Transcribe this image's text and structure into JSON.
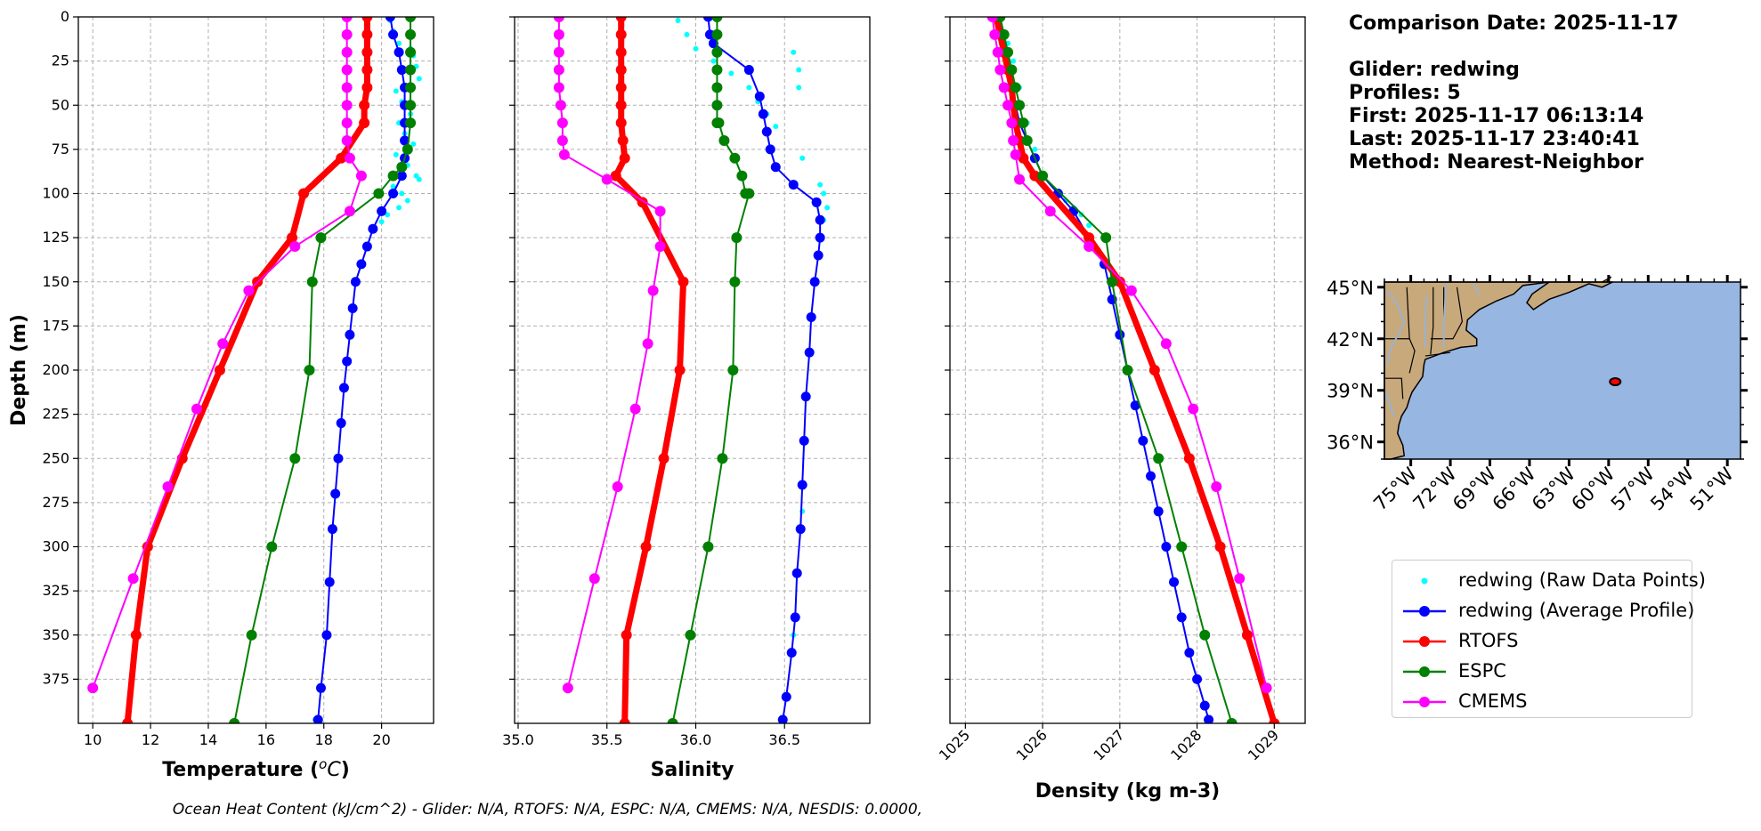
{
  "info": {
    "comparison_date": "Comparison Date: 2025-11-17",
    "glider": "Glider: redwing",
    "profiles": "Profiles: 5",
    "first": "First: 2025-11-17 06:13:14",
    "last": "Last: 2025-11-17 23:40:41",
    "method": "Method: Nearest-Neighbor"
  },
  "footer": "Ocean Heat Content (kJ/cm^2) - Glider: N/A,  RTOFS: N/A,  ESPC: N/A,  CMEMS: N/A,  NESDIS: 0.0000,",
  "legend": [
    {
      "label": "redwing (Raw Data Points)",
      "color": "#00ffff",
      "style": "dots"
    },
    {
      "label": "redwing (Average Profile)",
      "color": "#0000ff",
      "style": "line-marker"
    },
    {
      "label": "RTOFS",
      "color": "#ff0000",
      "style": "line-marker"
    },
    {
      "label": "ESPC",
      "color": "#008000",
      "style": "line-marker"
    },
    {
      "label": "CMEMS",
      "color": "#ff00ff",
      "style": "line-marker"
    }
  ],
  "map": {
    "lat_labels": [
      "45°N",
      "42°N",
      "39°N",
      "36°N"
    ],
    "lat_values": [
      45,
      42,
      39,
      36
    ],
    "lon_labels": [
      "75°W",
      "72°W",
      "69°W",
      "66°W",
      "63°W",
      "60°W",
      "57°W",
      "54°W",
      "51°W"
    ],
    "lon_values": [
      -75,
      -72,
      -69,
      -66,
      -63,
      -60,
      -57,
      -54,
      -51
    ],
    "extent": {
      "lon": [
        -77,
        -50
      ],
      "lat": [
        35,
        45.3
      ]
    },
    "glider_position": {
      "lon": -59.5,
      "lat": 39.5
    },
    "land_color": "#c8a97c",
    "ocean_color": "#97b6e1"
  },
  "chart_data": [
    {
      "type": "line",
      "xlabel": "Temperature ($^oC$)",
      "ylabel": "Depth (m)",
      "xlim": [
        9.5,
        21.8
      ],
      "ylim": [
        400,
        0
      ],
      "xticks": [
        10,
        12,
        14,
        16,
        18,
        20
      ],
      "yticks": [
        0,
        25,
        50,
        75,
        100,
        125,
        150,
        175,
        200,
        225,
        250,
        275,
        300,
        325,
        350,
        375
      ],
      "grid": true,
      "series": [
        {
          "name": "redwing (Raw Data Points)",
          "style": "dots",
          "color": "#00ffff",
          "x": [
            20.3,
            20.4,
            20.6,
            21.0,
            21.1,
            21.2,
            21.3,
            20.5,
            20.7,
            21.0,
            20.6,
            20.8,
            21.1,
            20.5,
            20.9,
            21.2,
            20.4,
            20.7,
            21.3,
            20.9,
            20.6,
            20.2,
            20.0,
            19.7,
            17.7
          ],
          "y": [
            2,
            8,
            15,
            18,
            22,
            28,
            35,
            42,
            48,
            55,
            60,
            66,
            72,
            78,
            84,
            90,
            96,
            100,
            92,
            104,
            108,
            112,
            116,
            120,
            398
          ]
        },
        {
          "name": "redwing (Average Profile)",
          "style": "line-marker",
          "color": "#0000ff",
          "x": [
            20.3,
            20.4,
            20.6,
            20.7,
            20.8,
            20.8,
            20.8,
            20.8,
            20.8,
            20.7,
            20.4,
            20.0,
            19.7,
            19.5,
            19.3,
            19.1,
            19.0,
            18.9,
            18.8,
            18.7,
            18.6,
            18.5,
            18.4,
            18.3,
            18.2,
            18.1,
            17.9,
            17.8
          ],
          "y": [
            0,
            10,
            20,
            30,
            40,
            50,
            60,
            70,
            80,
            90,
            100,
            110,
            120,
            130,
            140,
            150,
            165,
            180,
            195,
            210,
            230,
            250,
            270,
            290,
            320,
            350,
            380,
            398
          ]
        },
        {
          "name": "RTOFS",
          "style": "line-marker",
          "color": "#ff0000",
          "x": [
            19.5,
            19.5,
            19.5,
            19.5,
            19.5,
            19.4,
            19.4,
            18.6,
            17.3,
            16.9,
            15.7,
            14.4,
            13.1,
            11.9,
            11.5,
            11.2
          ],
          "y": [
            0,
            10,
            20,
            30,
            40,
            50,
            60,
            80,
            100,
            125,
            150,
            200,
            250,
            300,
            350,
            400
          ]
        },
        {
          "name": "ESPC",
          "style": "line-marker",
          "color": "#008000",
          "x": [
            21.0,
            21.0,
            21.0,
            21.0,
            21.0,
            21.0,
            21.0,
            20.9,
            20.7,
            20.4,
            19.9,
            17.9,
            17.6,
            17.5,
            17.0,
            16.2,
            15.5,
            14.9
          ],
          "y": [
            0,
            10,
            20,
            30,
            40,
            50,
            60,
            75,
            85,
            90,
            100,
            125,
            150,
            200,
            250,
            300,
            350,
            400
          ]
        },
        {
          "name": "CMEMS",
          "style": "line-marker",
          "color": "#ff00ff",
          "x": [
            18.8,
            18.8,
            18.8,
            18.8,
            18.8,
            18.8,
            18.8,
            18.8,
            18.9,
            19.3,
            18.9,
            17.0,
            15.4,
            14.5,
            13.6,
            12.6,
            11.4,
            10.0
          ],
          "y": [
            0,
            10,
            20,
            30,
            40,
            50,
            60,
            70,
            80,
            90,
            110,
            130,
            155,
            185,
            222,
            266,
            318,
            380
          ]
        }
      ]
    },
    {
      "type": "line",
      "xlabel": "Salinity",
      "ylabel": "",
      "xlim": [
        34.98,
        36.98
      ],
      "ylim": [
        400,
        0
      ],
      "xticks": [
        35.0,
        35.5,
        36.0,
        36.5
      ],
      "yticks": [
        0,
        25,
        50,
        75,
        100,
        125,
        150,
        175,
        200,
        225,
        250,
        275,
        300,
        325,
        350,
        375
      ],
      "grid": true,
      "series": [
        {
          "name": "redwing (Raw Data Points)",
          "style": "dots",
          "color": "#00ffff",
          "x": [
            35.9,
            35.95,
            36.0,
            36.1,
            36.2,
            36.3,
            36.35,
            36.4,
            36.45,
            36.55,
            36.58,
            36.58,
            36.6,
            36.7,
            36.72,
            36.74,
            36.72,
            36.6,
            36.55,
            36.5
          ],
          "y": [
            2,
            10,
            18,
            25,
            32,
            40,
            48,
            55,
            62,
            20,
            30,
            40,
            80,
            95,
            100,
            108,
            115,
            280,
            350,
            398
          ]
        },
        {
          "name": "redwing (Average Profile)",
          "style": "line-marker",
          "color": "#0000ff",
          "x": [
            36.07,
            36.08,
            36.1,
            36.3,
            36.36,
            36.38,
            36.4,
            36.42,
            36.45,
            36.55,
            36.68,
            36.7,
            36.7,
            36.69,
            36.67,
            36.65,
            36.64,
            36.62,
            36.61,
            36.6,
            36.59,
            36.57,
            36.56,
            36.54,
            36.51,
            36.49
          ],
          "y": [
            0,
            10,
            15,
            30,
            45,
            55,
            65,
            75,
            85,
            95,
            105,
            115,
            125,
            135,
            150,
            170,
            190,
            215,
            240,
            265,
            290,
            315,
            340,
            360,
            385,
            398
          ]
        },
        {
          "name": "RTOFS",
          "style": "line-marker",
          "color": "#ff0000",
          "x": [
            35.58,
            35.58,
            35.58,
            35.58,
            35.58,
            35.58,
            35.58,
            35.59,
            35.6,
            35.55,
            35.7,
            35.93,
            35.91,
            35.82,
            35.72,
            35.61,
            35.6
          ],
          "y": [
            0,
            10,
            20,
            30,
            40,
            50,
            60,
            70,
            80,
            90,
            105,
            150,
            200,
            250,
            300,
            350,
            400
          ]
        },
        {
          "name": "ESPC",
          "style": "line-marker",
          "color": "#008000",
          "x": [
            36.12,
            36.12,
            36.12,
            36.12,
            36.12,
            36.12,
            36.12,
            36.13,
            36.16,
            36.22,
            36.26,
            36.28,
            36.3,
            36.23,
            36.22,
            36.21,
            36.15,
            36.07,
            35.97,
            35.87
          ],
          "y": [
            0,
            10,
            20,
            30,
            40,
            50,
            60,
            60,
            70,
            80,
            90,
            100,
            100,
            125,
            150,
            200,
            250,
            300,
            350,
            400
          ]
        },
        {
          "name": "CMEMS",
          "style": "line-marker",
          "color": "#ff00ff",
          "x": [
            35.23,
            35.23,
            35.23,
            35.23,
            35.23,
            35.24,
            35.25,
            35.25,
            35.26,
            35.5,
            35.8,
            35.8,
            35.76,
            35.73,
            35.66,
            35.56,
            35.43,
            35.28
          ],
          "y": [
            0,
            10,
            20,
            30,
            40,
            50,
            60,
            70,
            78,
            92,
            110,
            130,
            155,
            185,
            222,
            266,
            318,
            380
          ]
        }
      ]
    },
    {
      "type": "line",
      "xlabel": "Density (kg m-3)",
      "ylabel": "",
      "xlim": [
        1024.8,
        1029.4
      ],
      "ylim": [
        400,
        0
      ],
      "xticks": [
        1025,
        1026,
        1027,
        1028,
        1029
      ],
      "yticks": [
        0,
        25,
        50,
        75,
        100,
        125,
        150,
        175,
        200,
        225,
        250,
        275,
        300,
        325,
        350,
        375
      ],
      "grid": true,
      "series": [
        {
          "name": "redwing (Raw Data Points)",
          "style": "dots",
          "color": "#00ffff",
          "x": [
            1025.45,
            1025.55,
            1025.62,
            1025.7,
            1025.72,
            1025.8,
            1025.9,
            1026.2,
            1026.3,
            1026.4,
            1026.5,
            1026.6
          ],
          "y": [
            5,
            15,
            25,
            40,
            50,
            60,
            75,
            100,
            104,
            108,
            112,
            118
          ]
        },
        {
          "name": "redwing (Average Profile)",
          "style": "line-marker",
          "color": "#0000ff",
          "x": [
            1025.4,
            1025.45,
            1025.5,
            1025.55,
            1025.6,
            1025.65,
            1025.7,
            1025.8,
            1025.9,
            1026.0,
            1026.2,
            1026.4,
            1026.6,
            1026.8,
            1026.9,
            1027.0,
            1027.1,
            1027.2,
            1027.3,
            1027.4,
            1027.5,
            1027.6,
            1027.7,
            1027.8,
            1027.9,
            1028.0,
            1028.1,
            1028.15
          ],
          "y": [
            0,
            10,
            20,
            30,
            40,
            50,
            60,
            70,
            80,
            90,
            100,
            110,
            125,
            140,
            160,
            180,
            200,
            220,
            240,
            260,
            280,
            300,
            320,
            340,
            360,
            375,
            390,
            398
          ]
        },
        {
          "name": "RTOFS",
          "style": "line-marker",
          "color": "#ff0000",
          "x": [
            1025.4,
            1025.45,
            1025.5,
            1025.55,
            1025.6,
            1025.62,
            1025.65,
            1025.7,
            1025.75,
            1025.9,
            1026.6,
            1027.0,
            1027.45,
            1027.9,
            1028.3,
            1028.65,
            1029.0
          ],
          "y": [
            0,
            10,
            20,
            30,
            40,
            50,
            60,
            70,
            80,
            90,
            125,
            150,
            200,
            250,
            300,
            350,
            400
          ]
        },
        {
          "name": "ESPC",
          "style": "line-marker",
          "color": "#008000",
          "x": [
            1025.45,
            1025.5,
            1025.55,
            1025.6,
            1025.65,
            1025.7,
            1025.75,
            1025.8,
            1026.0,
            1026.82,
            1026.9,
            1027.1,
            1027.5,
            1027.8,
            1028.1,
            1028.45
          ],
          "y": [
            0,
            10,
            20,
            30,
            40,
            50,
            60,
            70,
            90,
            125,
            150,
            200,
            250,
            300,
            350,
            400
          ]
        },
        {
          "name": "CMEMS",
          "style": "line-marker",
          "color": "#ff00ff",
          "x": [
            1025.35,
            1025.38,
            1025.42,
            1025.45,
            1025.5,
            1025.55,
            1025.6,
            1025.62,
            1025.65,
            1025.7,
            1026.1,
            1026.6,
            1027.15,
            1027.6,
            1027.95,
            1028.25,
            1028.55,
            1028.9
          ],
          "y": [
            0,
            10,
            20,
            30,
            40,
            50,
            60,
            70,
            78,
            92,
            110,
            130,
            155,
            185,
            222,
            266,
            318,
            380
          ]
        }
      ]
    }
  ]
}
